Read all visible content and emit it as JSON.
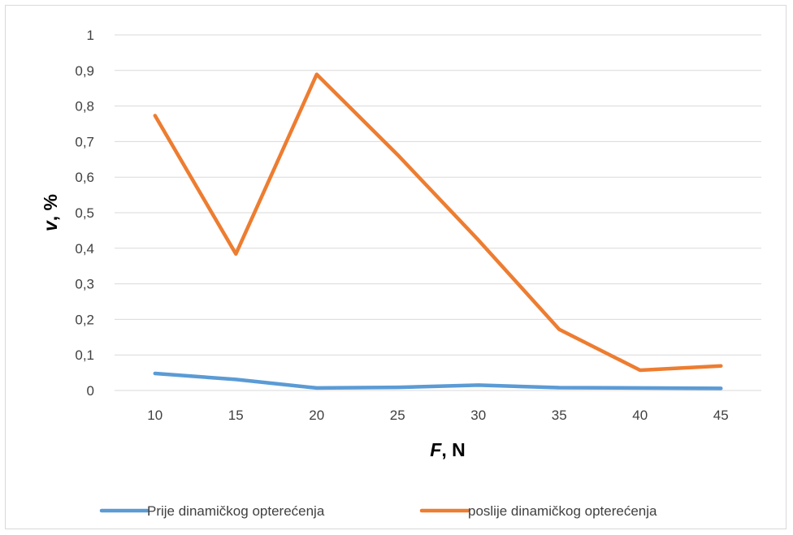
{
  "chart_data": {
    "type": "line",
    "x": [
      10,
      15,
      20,
      25,
      30,
      35,
      40,
      45
    ],
    "xlabel": {
      "var": "F",
      "rest": ", N"
    },
    "ylabel": {
      "var": "v",
      "rest": ", %"
    },
    "ylim": [
      0,
      1
    ],
    "yticks": [
      0,
      0.1,
      0.2,
      0.3,
      0.4,
      0.5,
      0.6,
      0.7,
      0.8,
      0.9,
      1
    ],
    "ytick_labels": [
      "0",
      "0,1",
      "0,2",
      "0,3",
      "0,4",
      "0,5",
      "0,6",
      "0,7",
      "0,8",
      "0,9",
      "1"
    ],
    "xtick_labels": [
      "10",
      "15",
      "20",
      "25",
      "30",
      "35",
      "40",
      "45"
    ],
    "grid": true,
    "legend_position": "bottom",
    "series": [
      {
        "name": "Prije dinamičkog opterećenja",
        "color": "#5b9bd5",
        "values": [
          0.048,
          0.031,
          0.007,
          0.009,
          0.015,
          0.008,
          0.007,
          0.006
        ]
      },
      {
        "name": "poslije dinamičkog opterećenja",
        "color": "#ed7d31",
        "values": [
          0.773,
          0.384,
          0.889,
          0.663,
          0.423,
          0.172,
          0.057,
          0.069
        ]
      }
    ]
  }
}
